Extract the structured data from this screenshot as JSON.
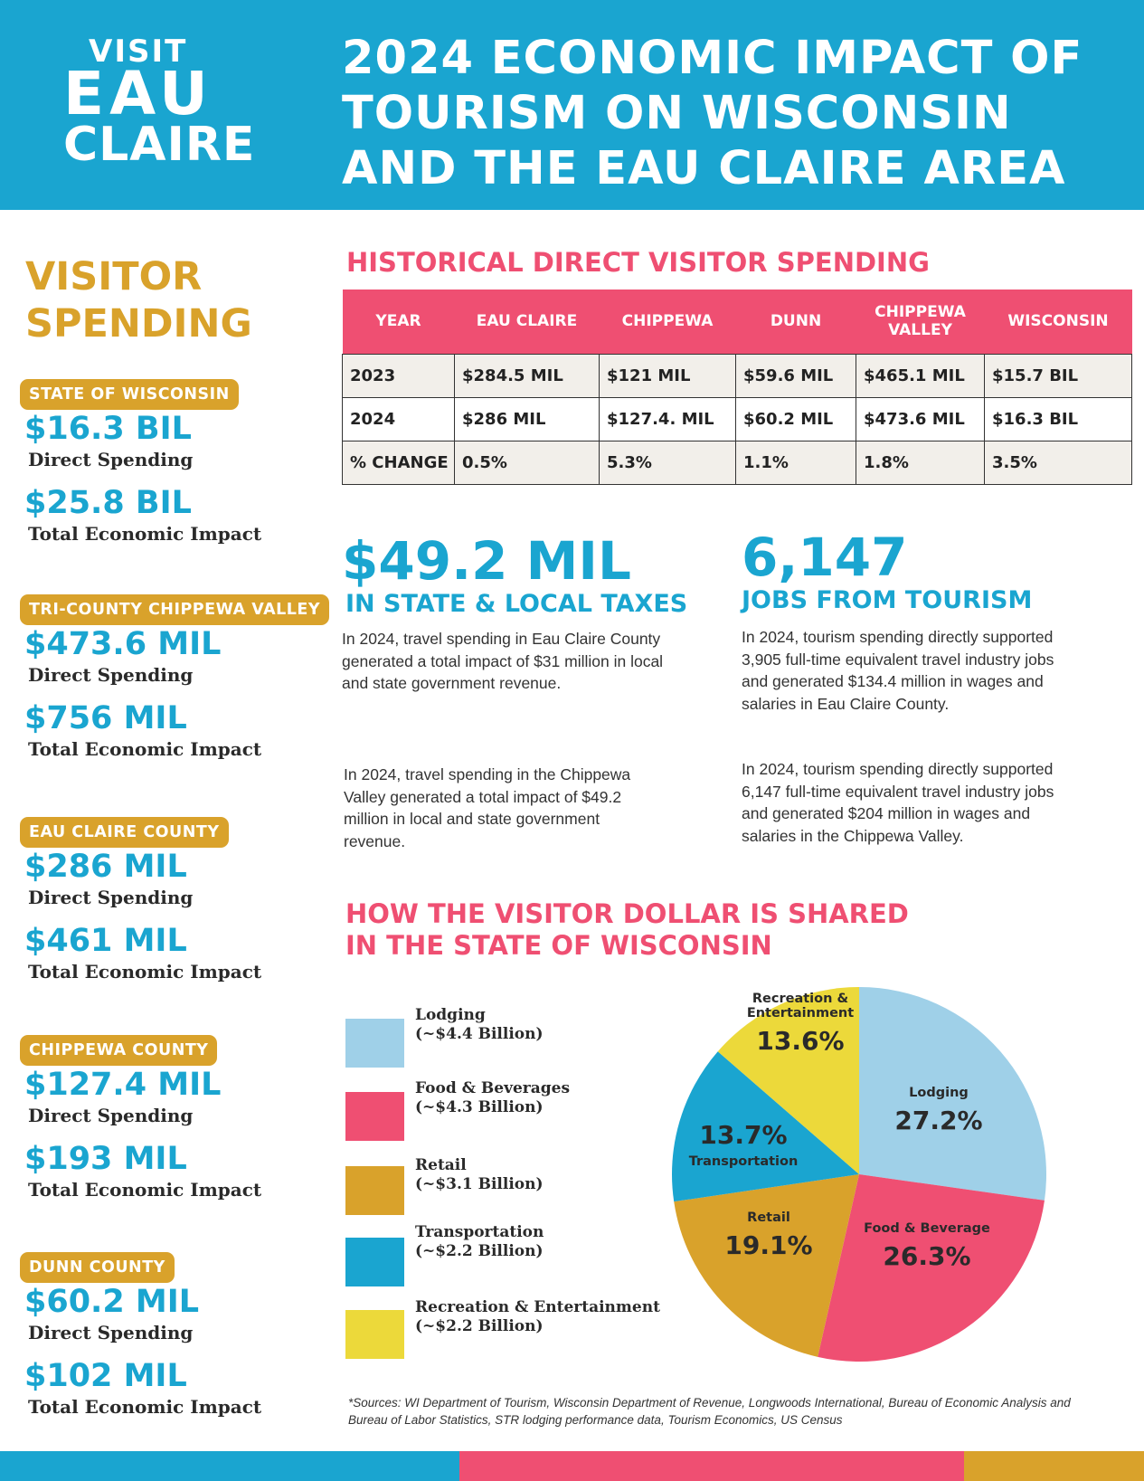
{
  "logo": {
    "line1": "VISIT",
    "line2": "EAU",
    "line3": "CLAIRE"
  },
  "title": "2024 ECONOMIC IMPACT OF TOURISM ON WISCONSIN AND THE EAU CLAIRE AREA",
  "sidebar": {
    "heading": "VISITOR SPENDING",
    "regions": [
      {
        "badge": "STATE OF WISCONSIN",
        "direct_value": "$16.3 BIL",
        "direct_label": "Direct Spending",
        "total_value": "$25.8 BIL",
        "total_label": "Total Economic Impact"
      },
      {
        "badge": "TRI-COUNTY CHIPPEWA VALLEY",
        "direct_value": "$473.6 MIL",
        "direct_label": "Direct Spending",
        "total_value": "$756 MIL",
        "total_label": "Total Economic Impact"
      },
      {
        "badge": "EAU CLAIRE COUNTY",
        "direct_value": "$286 MIL",
        "direct_label": "Direct Spending",
        "total_value": "$461 MIL",
        "total_label": "Total Economic Impact"
      },
      {
        "badge": "CHIPPEWA COUNTY",
        "direct_value": "$127.4 MIL",
        "direct_label": "Direct Spending",
        "total_value": "$193 MIL",
        "total_label": "Total Economic Impact"
      },
      {
        "badge": "DUNN COUNTY",
        "direct_value": "$60.2 MIL",
        "direct_label": "Direct Spending",
        "total_value": "$102 MIL",
        "total_label": "Total Economic Impact"
      }
    ]
  },
  "historical": {
    "title": "HISTORICAL DIRECT VISITOR SPENDING",
    "headers": [
      "YEAR",
      "EAU CLAIRE",
      "CHIPPEWA",
      "DUNN",
      "CHIPPEWA VALLEY",
      "WISCONSIN"
    ],
    "rows": [
      [
        "2023",
        "$284.5 MIL",
        "$121 MIL",
        "$59.6 MIL",
        "$465.1 MIL",
        "$15.7 BIL"
      ],
      [
        "2024",
        "$286 MIL",
        "$127.4. MIL",
        "$60.2 MIL",
        "$473.6 MIL",
        "$16.3 BIL"
      ],
      [
        "% CHANGE",
        "0.5%",
        "5.3%",
        "1.1%",
        "1.8%",
        "3.5%"
      ]
    ]
  },
  "taxes": {
    "value": "$49.2 MIL",
    "label": "IN STATE & LOCAL TAXES",
    "para1": "In 2024, travel spending in Eau Claire County generated a total impact of $31 million in local and state government revenue.",
    "para2": "In 2024, travel spending in the Chippewa Valley generated a total impact of $49.2 million in local and state government revenue."
  },
  "jobs": {
    "value": "6,147",
    "label": "JOBS FROM TOURISM",
    "para1": "In 2024, tourism spending directly supported 3,905 full-time equivalent travel industry jobs and generated $134.4 million in wages and salaries in Eau Claire County.",
    "para2": "In 2024, tourism spending directly supported 6,147 full-time equivalent travel industry jobs and generated $204 million in wages and salaries in the Chippewa Valley."
  },
  "dollar": {
    "title_line1": "HOW THE VISITOR DOLLAR IS SHARED",
    "title_line2": "IN THE STATE OF WISCONSIN",
    "legend": [
      {
        "name": "Lodging",
        "amount": "(~$4.4 Billion)",
        "color": "#9fd0e8"
      },
      {
        "name": "Food & Beverages",
        "amount": "(~$4.3 Billion)",
        "color": "#ef4f72"
      },
      {
        "name": "Retail",
        "amount": "(~$3.1 Billion)",
        "color": "#d9a22b"
      },
      {
        "name": "Transportation",
        "amount": "(~$2.2 Billion)",
        "color": "#1aa5d0"
      },
      {
        "name": "Recreation & Entertainment",
        "amount": "(~$2.2 Billion)",
        "color": "#ecd93a"
      }
    ]
  },
  "chart_data": {
    "type": "pie",
    "title": "HOW THE VISITOR DOLLAR IS SHARED IN THE STATE OF WISCONSIN",
    "slices": [
      {
        "label": "Lodging",
        "value": 27.2,
        "display": "27.2%",
        "color": "#9fd0e8"
      },
      {
        "label": "Food & Beverage",
        "value": 26.3,
        "display": "26.3%",
        "color": "#ef4f72"
      },
      {
        "label": "Retail",
        "value": 19.1,
        "display": "19.1%",
        "color": "#d9a22b"
      },
      {
        "label": "Transportation",
        "value": 13.7,
        "display": "13.7%",
        "color": "#1aa5d0"
      },
      {
        "label": "Recreation & Entertainment",
        "value": 13.6,
        "display": "13.6%",
        "color": "#ecd93a"
      }
    ]
  },
  "sources": "*Sources: WI Department of Tourism, Wisconsin Department of Revenue, Longwoods International, Bureau of Economic Analysis and Bureau of Labor Statistics, STR lodging performance data, Tourism Economics, US Census",
  "colors": {
    "blue": "#1aa5d0",
    "pink": "#ef4f72",
    "gold": "#d9a22b",
    "yellow": "#ecd93a",
    "light_blue": "#9fd0e8"
  }
}
